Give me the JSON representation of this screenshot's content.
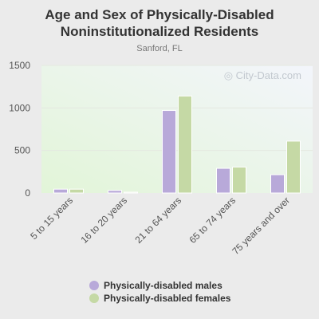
{
  "title": "Age and Sex of Physically-Disabled Noninstitutionalized Residents",
  "subtitle": "Sanford, FL",
  "watermark": "City-Data.com",
  "legend": [
    {
      "label": "Physically-disabled males",
      "color": "#b8a9d9"
    },
    {
      "label": "Physically-disabled females",
      "color": "#c5d9a5"
    }
  ],
  "chart_data": {
    "type": "bar",
    "title": "Age and Sex of Physically-Disabled Noninstitutionalized Residents",
    "subtitle": "Sanford, FL",
    "categories": [
      "5 to 15 years",
      "16 to 20 years",
      "21 to 64 years",
      "65 to 74 years",
      "75 years and over"
    ],
    "series": [
      {
        "name": "Physically-disabled males",
        "color": "#b8a9d9",
        "values": [
          45,
          30,
          970,
          290,
          215
        ]
      },
      {
        "name": "Physically-disabled females",
        "color": "#c5d9a5",
        "values": [
          45,
          10,
          1140,
          305,
          610
        ]
      }
    ],
    "yticks": [
      0,
      500,
      1000,
      1500
    ],
    "ylim": [
      0,
      1500
    ],
    "grid": true,
    "legend_position": "bottom"
  }
}
